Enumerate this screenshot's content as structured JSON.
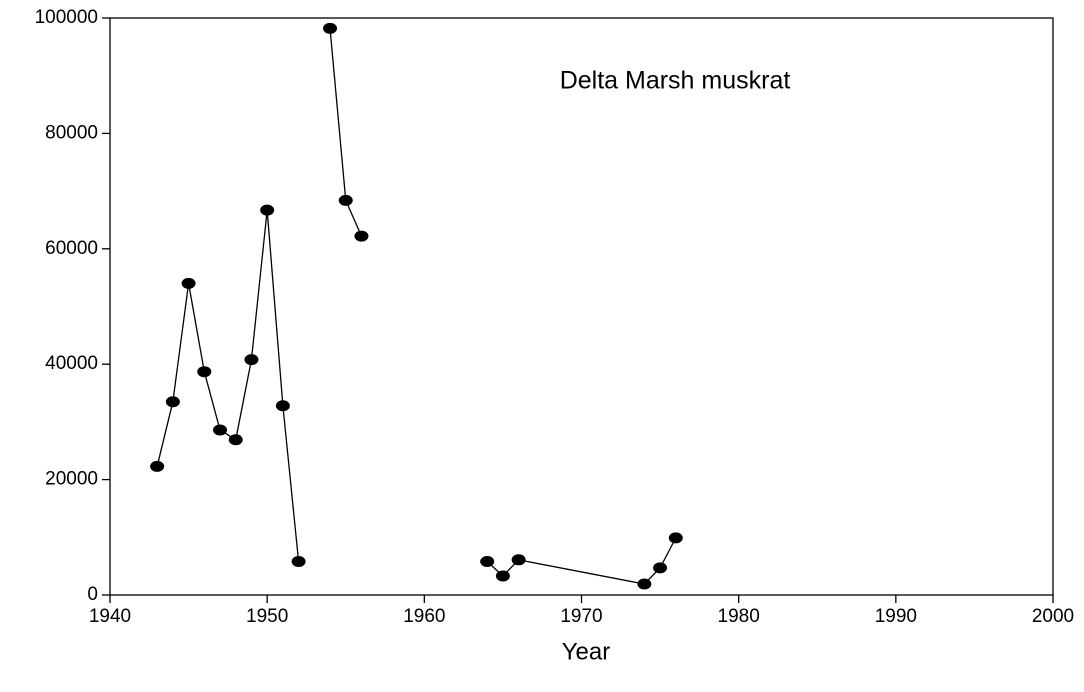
{
  "chart_data": {
    "type": "line",
    "title": "Delta Marsh muskrat",
    "xlabel": "Year",
    "x": [
      1943,
      1944,
      1945,
      1946,
      1947,
      1948,
      1949,
      1950,
      1951,
      1952,
      1953,
      1954,
      1955,
      1956,
      1960,
      1964,
      1965,
      1966,
      1974,
      1975,
      1976
    ],
    "series": [
      {
        "color": "#000000",
        "values": [
          22300,
          33500,
          54000,
          38700,
          28600,
          26900,
          40800,
          66700,
          32800,
          5800,
          null,
          98200,
          68400,
          62200,
          null,
          5800,
          3300,
          6100,
          1900,
          4700,
          9900
        ]
      }
    ],
    "xlim": [
      1940,
      2000
    ],
    "xticks": [
      1940,
      1950,
      1960,
      1970,
      1980,
      1990,
      2000
    ],
    "ylim": [
      0,
      100000
    ],
    "yticks": [
      0,
      20000,
      40000,
      60000,
      80000,
      100000
    ],
    "grid": false
  }
}
